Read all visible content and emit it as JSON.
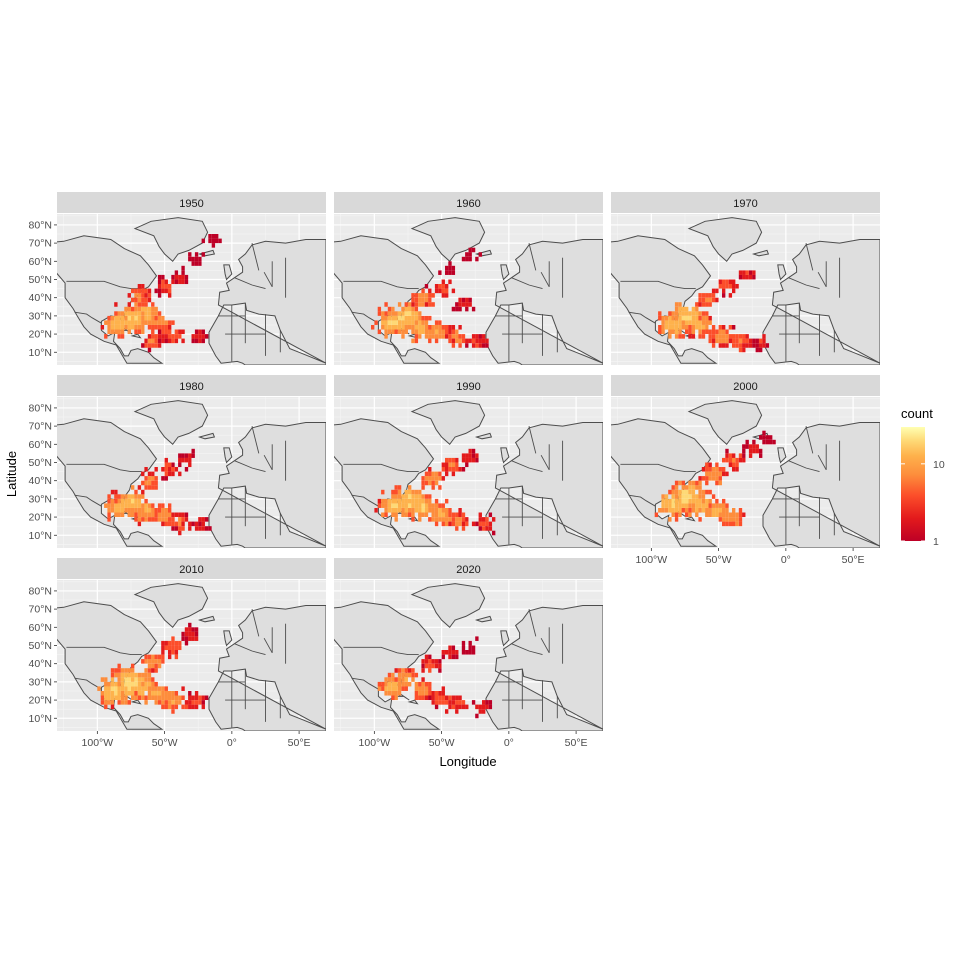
{
  "chart_data": {
    "type": "heatmap",
    "title": "",
    "xlabel": "Longitude",
    "ylabel": "Latitude",
    "xlim": [
      -130,
      70
    ],
    "ylim": [
      3,
      86
    ],
    "x_ticks": [
      {
        "value": -100,
        "label": "100°W"
      },
      {
        "value": -50,
        "label": "50°W"
      },
      {
        "value": 0,
        "label": "0°"
      },
      {
        "value": 50,
        "label": "50°E"
      }
    ],
    "y_ticks": [
      {
        "value": 10,
        "label": "10°N"
      },
      {
        "value": 20,
        "label": "20°N"
      },
      {
        "value": 30,
        "label": "30°N"
      },
      {
        "value": 40,
        "label": "40°N"
      },
      {
        "value": 50,
        "label": "50°N"
      },
      {
        "value": 60,
        "label": "60°N"
      },
      {
        "value": 70,
        "label": "70°N"
      },
      {
        "value": 80,
        "label": "80°N"
      }
    ],
    "legend": {
      "title": "count",
      "scale": "log10",
      "placement": "right",
      "limits": [
        1,
        30
      ],
      "tick_values": [
        1,
        10
      ],
      "tick_labels": [
        "1",
        "10"
      ],
      "colors": [
        "#bd0026",
        "#e31a1c",
        "#fc4e2a",
        "#fd8d3c",
        "#feb24c",
        "#fed976",
        "#ffffb2"
      ]
    },
    "facets": [
      {
        "label": "1950",
        "bins": [
          [
            -85,
            24,
            12
          ],
          [
            -75,
            27,
            14
          ],
          [
            -65,
            30,
            9
          ],
          [
            -55,
            25,
            6
          ],
          [
            -45,
            18,
            4
          ],
          [
            -70,
            40,
            5
          ],
          [
            -50,
            45,
            3
          ],
          [
            -40,
            50,
            2
          ],
          [
            -25,
            17,
            2
          ],
          [
            -60,
            15,
            4
          ],
          [
            -30,
            60,
            1
          ],
          [
            -15,
            70,
            1
          ]
        ]
      },
      {
        "label": "1960",
        "bins": [
          [
            -88,
            25,
            14
          ],
          [
            -78,
            28,
            16
          ],
          [
            -68,
            22,
            10
          ],
          [
            -55,
            20,
            7
          ],
          [
            -40,
            17,
            5
          ],
          [
            -65,
            38,
            6
          ],
          [
            -50,
            44,
            3
          ],
          [
            -35,
            35,
            2
          ],
          [
            -25,
            15,
            3
          ],
          [
            -45,
            55,
            1
          ],
          [
            -30,
            62,
            1
          ]
        ]
      },
      {
        "label": "1970",
        "bins": [
          [
            -85,
            24,
            12
          ],
          [
            -75,
            28,
            14
          ],
          [
            -65,
            24,
            9
          ],
          [
            -50,
            18,
            6
          ],
          [
            -35,
            15,
            4
          ],
          [
            -60,
            38,
            5
          ],
          [
            -45,
            45,
            3
          ],
          [
            -30,
            52,
            2
          ],
          [
            -20,
            14,
            2
          ]
        ]
      },
      {
        "label": "1980",
        "bins": [
          [
            -85,
            24,
            10
          ],
          [
            -75,
            27,
            12
          ],
          [
            -65,
            22,
            8
          ],
          [
            -52,
            20,
            6
          ],
          [
            -40,
            16,
            4
          ],
          [
            -62,
            38,
            5
          ],
          [
            -48,
            45,
            3
          ],
          [
            -35,
            50,
            2
          ],
          [
            -25,
            15,
            2
          ]
        ]
      },
      {
        "label": "1990",
        "bins": [
          [
            -85,
            25,
            13
          ],
          [
            -75,
            28,
            15
          ],
          [
            -65,
            24,
            11
          ],
          [
            -52,
            20,
            8
          ],
          [
            -40,
            17,
            6
          ],
          [
            -58,
            40,
            6
          ],
          [
            -45,
            47,
            4
          ],
          [
            -30,
            52,
            2
          ],
          [
            -20,
            15,
            3
          ]
        ]
      },
      {
        "label": "2000",
        "bins": [
          [
            -85,
            26,
            14
          ],
          [
            -75,
            30,
            17
          ],
          [
            -65,
            26,
            12
          ],
          [
            -52,
            22,
            9
          ],
          [
            -40,
            18,
            6
          ],
          [
            -55,
            42,
            7
          ],
          [
            -40,
            50,
            4
          ],
          [
            -25,
            56,
            2
          ],
          [
            -15,
            62,
            1
          ]
        ]
      },
      {
        "label": "2010",
        "bins": [
          [
            -88,
            24,
            15
          ],
          [
            -78,
            28,
            17
          ],
          [
            -68,
            26,
            13
          ],
          [
            -56,
            22,
            9
          ],
          [
            -45,
            19,
            7
          ],
          [
            -60,
            40,
            6
          ],
          [
            -45,
            48,
            4
          ],
          [
            -32,
            55,
            2
          ],
          [
            -28,
            18,
            3
          ]
        ]
      },
      {
        "label": "2020",
        "bins": [
          [
            -88,
            26,
            9
          ],
          [
            -78,
            30,
            8
          ],
          [
            -66,
            24,
            6
          ],
          [
            -52,
            20,
            4
          ],
          [
            -40,
            17,
            3
          ],
          [
            -60,
            38,
            3
          ],
          [
            -45,
            45,
            2
          ],
          [
            -30,
            48,
            1
          ],
          [
            -20,
            15,
            2
          ]
        ]
      }
    ]
  }
}
